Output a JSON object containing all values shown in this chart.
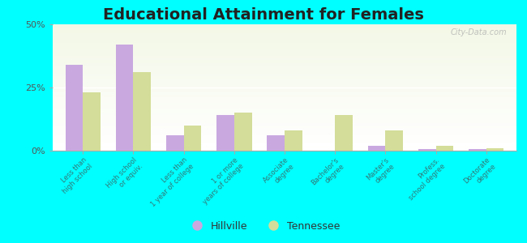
{
  "title": "Educational Attainment for Females",
  "categories": [
    "Less than\nhigh school",
    "High school\nor equiv.",
    "Less than\n1 year of college",
    "1 or more\nyears of college",
    "Associate\ndegree",
    "Bachelor's\ndegree",
    "Master's\ndegree",
    "Profess.\nschool degree",
    "Doctorate\ndegree"
  ],
  "hillville": [
    34,
    42,
    6,
    14,
    6,
    0,
    2,
    0.5,
    0.5
  ],
  "tennessee": [
    23,
    31,
    10,
    15,
    8,
    14,
    8,
    2,
    1
  ],
  "hillville_color": "#c9a8e0",
  "tennessee_color": "#d4dd99",
  "outer_bg": "#00ffff",
  "plot_bg_color": "#eef4e0",
  "ylim": [
    0,
    50
  ],
  "yticks": [
    0,
    25,
    50
  ],
  "ytick_labels": [
    "0%",
    "25%",
    "50%"
  ],
  "bar_width": 0.35,
  "title_fontsize": 14,
  "legend_labels": [
    "Hillville",
    "Tennessee"
  ],
  "watermark": "City-Data.com"
}
